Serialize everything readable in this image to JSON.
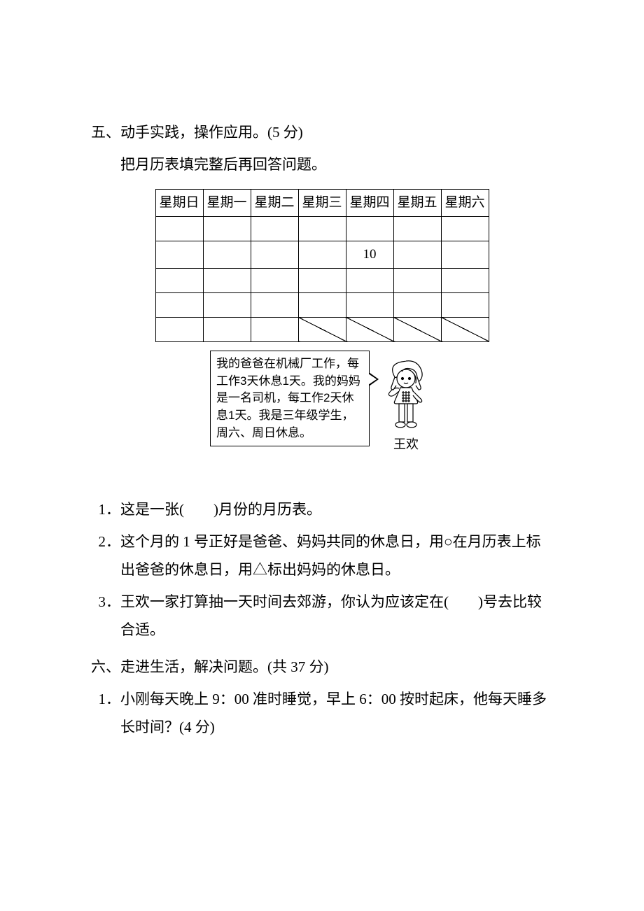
{
  "section5": {
    "heading": "五、动手实践，操作应用。(5 分)",
    "instruction": "把月历表填完整后再回答问题。",
    "calendar": {
      "headers": [
        "星期日",
        "星期一",
        "星期二",
        "星期三",
        "星期四",
        "星期五",
        "星期六"
      ],
      "given_value": "10",
      "given_row": 1,
      "given_col": 4,
      "slash_cells": [
        [
          4,
          3
        ],
        [
          4,
          4
        ],
        [
          4,
          5
        ],
        [
          4,
          6
        ]
      ]
    },
    "bubble": "我的爸爸在机械厂工作，每工作3天休息1天。我的妈妈是一名司机，每工作2天休息1天。我是三年级学生，周六、周日休息。",
    "girl_name": "王欢",
    "q1": "1．这是一张(　　)月份的月历表。",
    "q2": "2．这个月的 1 号正好是爸爸、妈妈共同的休息日，用○在月历表上标出爸爸的休息日，用△标出妈妈的休息日。",
    "q3": "3．王欢一家打算抽一天时间去郊游，你认为应该定在(　　)号去比较合适。"
  },
  "section6": {
    "heading": "六、走进生活，解决问题。(共 37 分)",
    "q1": "1．小刚每天晚上 9：00 准时睡觉，早上 6：00 按时起床，他每天睡多长时间？(4 分)"
  }
}
